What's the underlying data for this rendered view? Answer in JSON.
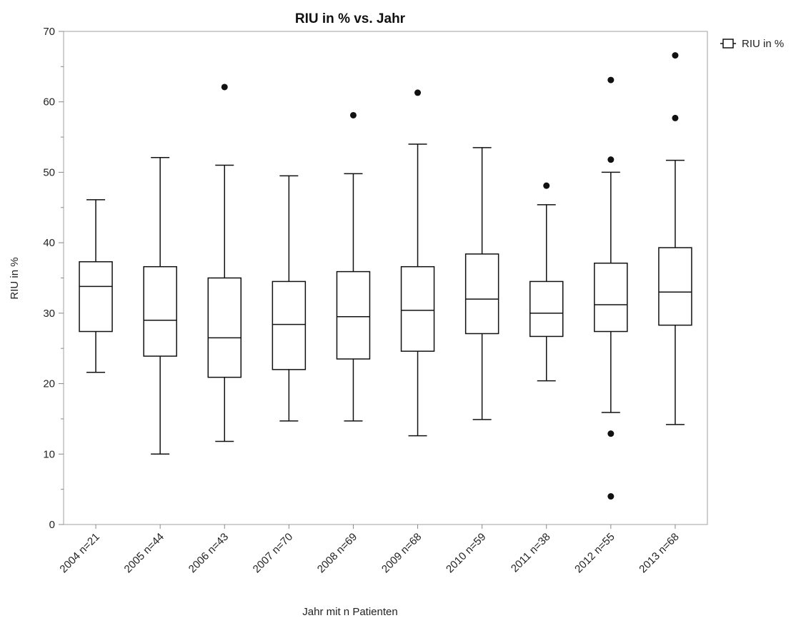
{
  "chart_data": {
    "type": "boxplot",
    "title": "RIU in % vs. Jahr",
    "xlabel": "Jahr mit n Patienten",
    "ylabel": "RIU in %",
    "ylim": [
      0,
      70
    ],
    "yticks": [
      0,
      10,
      20,
      30,
      40,
      50,
      60,
      70
    ],
    "grid": false,
    "legend": {
      "position": "top-right",
      "entries": [
        "RIU in %"
      ]
    },
    "series": [
      {
        "name": "RIU in %",
        "boxes": [
          {
            "category": "2004 n=21",
            "whisker_low": 21.6,
            "q1": 27.4,
            "median": 33.8,
            "q3": 37.3,
            "whisker_high": 46.1,
            "outliers": []
          },
          {
            "category": "2005 n=44",
            "whisker_low": 10.0,
            "q1": 23.9,
            "median": 29.0,
            "q3": 36.6,
            "whisker_high": 52.1,
            "outliers": []
          },
          {
            "category": "2006 n=43",
            "whisker_low": 11.8,
            "q1": 20.9,
            "median": 26.5,
            "q3": 35.0,
            "whisker_high": 51.0,
            "outliers": [
              62.1
            ]
          },
          {
            "category": "2007 n=70",
            "whisker_low": 14.7,
            "q1": 22.0,
            "median": 28.4,
            "q3": 34.5,
            "whisker_high": 49.5,
            "outliers": []
          },
          {
            "category": "2008 n=69",
            "whisker_low": 14.7,
            "q1": 23.5,
            "median": 29.5,
            "q3": 35.9,
            "whisker_high": 49.8,
            "outliers": [
              58.1
            ]
          },
          {
            "category": "2009 n=68",
            "whisker_low": 12.6,
            "q1": 24.6,
            "median": 30.4,
            "q3": 36.6,
            "whisker_high": 54.0,
            "outliers": [
              61.3
            ]
          },
          {
            "category": "2010 n=59",
            "whisker_low": 14.9,
            "q1": 27.1,
            "median": 32.0,
            "q3": 38.4,
            "whisker_high": 53.5,
            "outliers": []
          },
          {
            "category": "2011 n=38",
            "whisker_low": 20.4,
            "q1": 26.7,
            "median": 30.0,
            "q3": 34.5,
            "whisker_high": 45.4,
            "outliers": [
              48.1
            ]
          },
          {
            "category": "2012 n=55",
            "whisker_low": 15.9,
            "q1": 27.4,
            "median": 31.2,
            "q3": 37.1,
            "whisker_high": 50.0,
            "outliers": [
              51.8,
              63.1,
              12.9,
              4.0
            ]
          },
          {
            "category": "2013 n=68",
            "whisker_low": 14.2,
            "q1": 28.3,
            "median": 33.0,
            "q3": 39.3,
            "whisker_high": 51.7,
            "outliers": [
              66.6,
              57.7
            ]
          }
        ]
      }
    ]
  }
}
